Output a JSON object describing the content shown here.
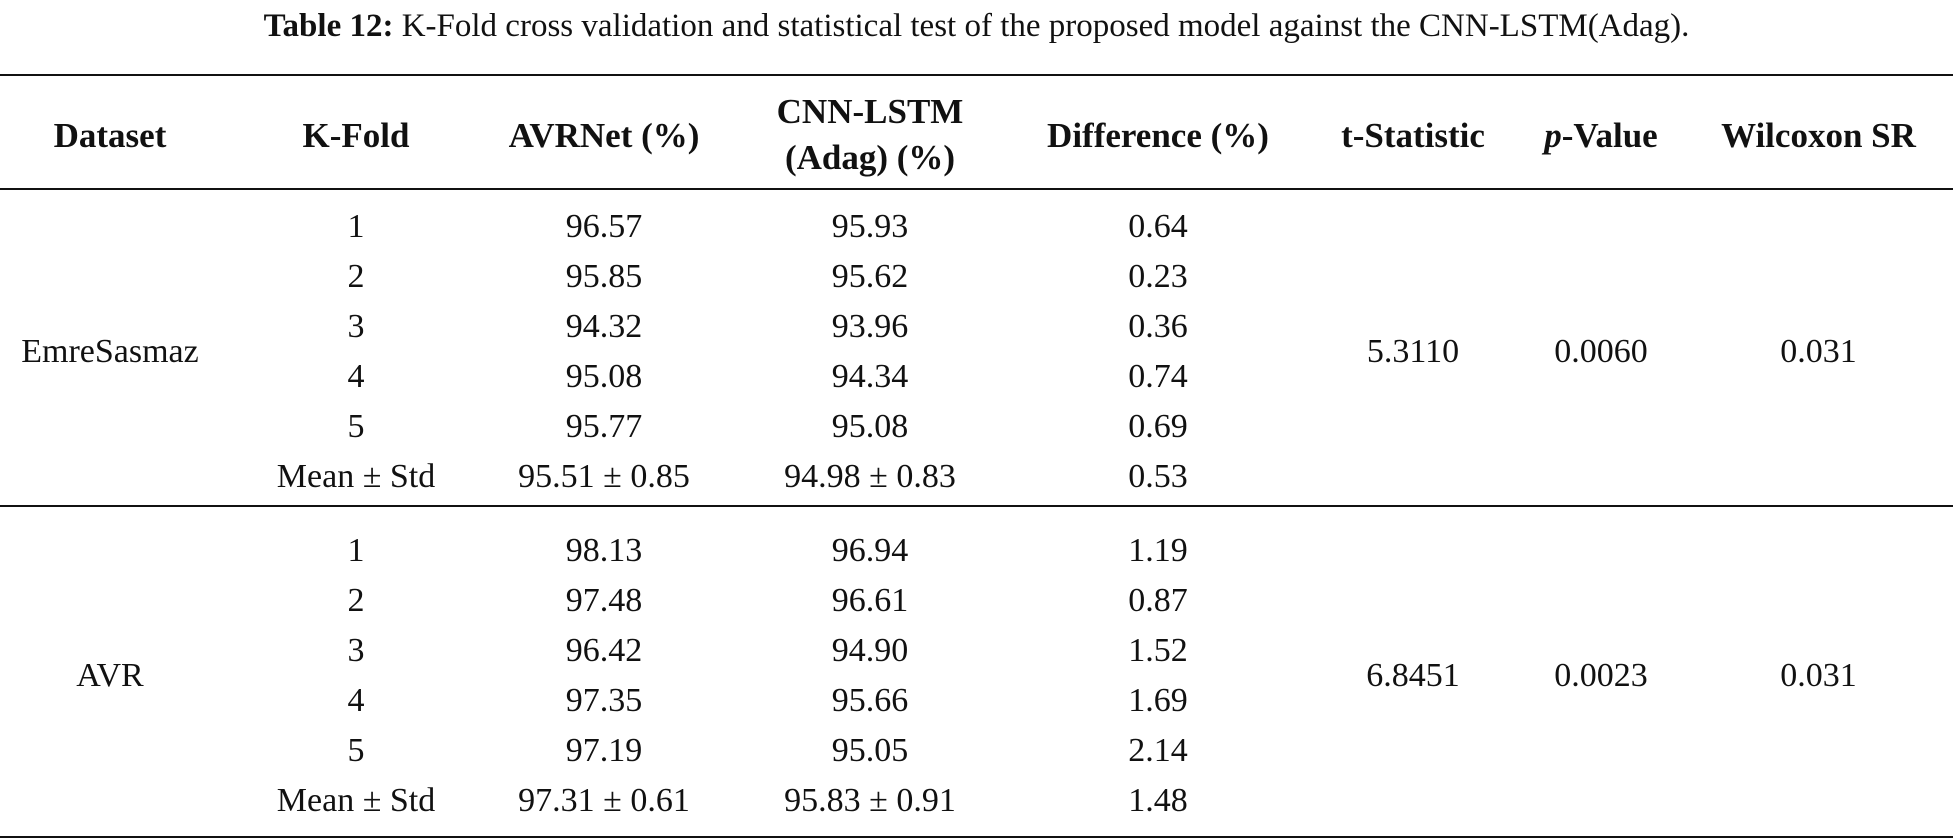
{
  "caption": {
    "label": "Table 12:",
    "text": "K-Fold cross validation and statistical test of the proposed model against the CNN-LSTM(Adag)."
  },
  "headers": {
    "dataset": "Dataset",
    "kfold": "K-Fold",
    "avrnet": "AVRNet (%)",
    "cnn_line1": "CNN-LSTM",
    "cnn_line2": "(Adag) (%)",
    "difference": "Difference (%)",
    "tstat": "t-Statistic",
    "pvalue_italic": "p",
    "pvalue_rest": "-Value",
    "wilcoxon": "Wilcoxon SR"
  },
  "groups": [
    {
      "dataset": "EmreSasmaz",
      "t_statistic": "5.3110",
      "p_value": "0.0060",
      "wilcoxon": "0.031",
      "rows": [
        {
          "fold": "1",
          "avrnet": "96.57",
          "cnn": "95.93",
          "diff": "0.64"
        },
        {
          "fold": "2",
          "avrnet": "95.85",
          "cnn": "95.62",
          "diff": "0.23"
        },
        {
          "fold": "3",
          "avrnet": "94.32",
          "cnn": "93.96",
          "diff": "0.36"
        },
        {
          "fold": "4",
          "avrnet": "95.08",
          "cnn": "94.34",
          "diff": "0.74"
        },
        {
          "fold": "5",
          "avrnet": "95.77",
          "cnn": "95.08",
          "diff": "0.69"
        },
        {
          "fold": "Mean ± Std",
          "avrnet": "95.51 ± 0.85",
          "cnn": "94.98 ± 0.83",
          "diff": "0.53"
        }
      ]
    },
    {
      "dataset": "AVR",
      "t_statistic": "6.8451",
      "p_value": "0.0023",
      "wilcoxon": "0.031",
      "rows": [
        {
          "fold": "1",
          "avrnet": "98.13",
          "cnn": "96.94",
          "diff": "1.19"
        },
        {
          "fold": "2",
          "avrnet": "97.48",
          "cnn": "96.61",
          "diff": "0.87"
        },
        {
          "fold": "3",
          "avrnet": "96.42",
          "cnn": "94.90",
          "diff": "1.52"
        },
        {
          "fold": "4",
          "avrnet": "97.35",
          "cnn": "95.66",
          "diff": "1.69"
        },
        {
          "fold": "5",
          "avrnet": "97.19",
          "cnn": "95.05",
          "diff": "2.14"
        },
        {
          "fold": "Mean ± Std",
          "avrnet": "97.31 ± 0.61",
          "cnn": "95.83 ± 0.91",
          "diff": "1.48"
        }
      ]
    }
  ]
}
